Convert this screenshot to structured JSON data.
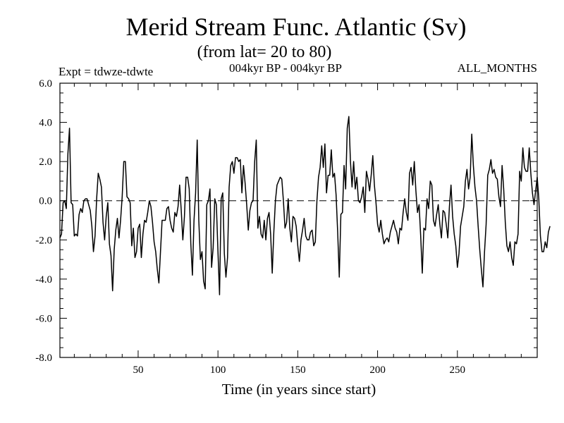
{
  "chart_data": {
    "type": "line",
    "title": "Merid Stream Func. Atlantic (Sv)",
    "subtitle": "(from lat= 20 to 80)",
    "experiment": "Expt = tdwze-tdwte",
    "period": "004kyr BP - 004kyr BP",
    "months": "ALL_MONTHS",
    "xlabel": "Time (in years since start)",
    "ylabel": "",
    "xlim": [
      1,
      300
    ],
    "ylim": [
      -8,
      6
    ],
    "xticks": [
      50,
      100,
      150,
      200,
      250
    ],
    "xtick_labels": [
      "50",
      "100",
      "150",
      "200",
      "250"
    ],
    "yticks": [
      -8,
      -6,
      -4,
      -2,
      0,
      2,
      4,
      6
    ],
    "ytick_labels": [
      "-8.0",
      "-6.0",
      "-4.0",
      "-2.0",
      "0.0",
      "2.0",
      "4.0",
      "6.0"
    ],
    "zero_line": "dashed",
    "series": [
      {
        "name": "tdwze-tdwte",
        "x_start": 1,
        "x_step": 1,
        "values": [
          -1.9,
          -1.7,
          -0.1,
          0.0,
          -0.4,
          2.4,
          3.7,
          -0.1,
          -0.2,
          -1.8,
          -1.7,
          -1.8,
          -0.7,
          -0.4,
          -0.6,
          0.0,
          0.1,
          0.1,
          -0.2,
          -0.5,
          -1.3,
          -2.6,
          -1.8,
          0.1,
          1.4,
          1.1,
          0.7,
          -1.1,
          -2.0,
          -0.8,
          -0.1,
          -2.2,
          -2.8,
          -4.6,
          -2.5,
          -1.5,
          -0.9,
          -1.9,
          -1.0,
          0.2,
          2.0,
          2.0,
          0.2,
          0.1,
          -0.1,
          -2.3,
          -1.4,
          -2.9,
          -2.6,
          -1.4,
          -1.2,
          -2.9,
          -1.7,
          -1.0,
          -1.1,
          -0.6,
          0.0,
          -0.3,
          -1.1,
          -2.1,
          -2.6,
          -3.5,
          -4.2,
          -2.6,
          -1.0,
          -1.0,
          -1.0,
          -0.4,
          -0.3,
          -1.0,
          -1.4,
          -1.6,
          -0.6,
          -0.8,
          -0.3,
          0.8,
          -0.5,
          -2.0,
          -0.8,
          1.2,
          1.2,
          0.6,
          -2.2,
          -3.8,
          -1.0,
          0.4,
          3.1,
          -1.0,
          -3.0,
          -2.6,
          -4.1,
          -4.5,
          -0.2,
          0.0,
          0.6,
          -3.4,
          -2.4,
          0.1,
          -0.2,
          -2.6,
          -4.8,
          0.1,
          0.4,
          -2.7,
          -3.9,
          -2.9,
          0.7,
          1.8,
          2.0,
          1.4,
          2.2,
          2.2,
          2.0,
          2.1,
          0.4,
          1.8,
          0.9,
          -0.2,
          -1.5,
          -0.5,
          -0.1,
          0.0,
          2.0,
          3.1,
          -1.4,
          -0.8,
          -1.7,
          -1.9,
          -1.0,
          -2.0,
          -0.9,
          -0.6,
          -1.7,
          -3.7,
          -1.6,
          0.0,
          0.8,
          1.0,
          1.2,
          1.1,
          0.0,
          -1.4,
          -1.1,
          0.1,
          -1.4,
          -2.1,
          -0.8,
          -0.9,
          -1.3,
          -2.3,
          -3.1,
          -2.0,
          -1.5,
          -0.9,
          -1.8,
          -2.0,
          -2.0,
          -1.6,
          -1.5,
          -2.3,
          -2.1,
          0.0,
          1.2,
          1.7,
          2.8,
          1.7,
          2.9,
          0.4,
          1.3,
          1.3,
          2.6,
          1.2,
          1.4,
          0.3,
          -1.6,
          -3.9,
          -0.7,
          -0.6,
          1.8,
          0.6,
          3.7,
          4.3,
          2.0,
          0.7,
          2.0,
          0.6,
          1.2,
          0.0,
          -0.1,
          0.2,
          0.7,
          -0.6,
          1.5,
          1.1,
          0.5,
          1.3,
          2.3,
          0.8,
          -0.1,
          -1.2,
          -1.6,
          -1.0,
          -1.7,
          -2.2,
          -2.0,
          -1.9,
          -2.1,
          -1.6,
          -1.3,
          -1.0,
          -1.4,
          -1.6,
          -2.2,
          -1.4,
          -1.5,
          -0.6,
          0.1,
          -0.6,
          -1.0,
          1.4,
          1.7,
          0.8,
          2.0,
          0.5,
          -0.6,
          -0.2,
          -1.8,
          -3.7,
          -1.4,
          -1.5,
          0.1,
          -0.4,
          1.0,
          0.8,
          -1.0,
          -1.3,
          -0.7,
          -0.2,
          -1.2,
          -1.9,
          -0.5,
          -0.6,
          -1.2,
          -1.9,
          -0.3,
          0.8,
          -0.8,
          -1.7,
          -2.3,
          -3.4,
          -2.7,
          -1.3,
          -0.8,
          -0.3,
          1.0,
          1.6,
          0.6,
          1.2,
          3.4,
          1.8,
          0.7,
          0.0,
          -1.3,
          -2.5,
          -3.5,
          -4.4,
          -2.6,
          -1.2,
          1.3,
          1.6,
          2.1,
          1.4,
          1.6,
          1.2,
          1.1,
          0.2,
          -0.3,
          1.8,
          0.6,
          -1.1,
          -2.3,
          -2.6,
          -2.1,
          -2.9,
          -3.3,
          -2.1,
          -2.2,
          -1.7,
          1.5,
          1.0,
          2.7,
          1.7,
          1.5,
          1.5,
          2.7,
          1.4,
          0.4,
          -0.2,
          0.5,
          1.2,
          0.1,
          -1.8,
          -2.6,
          -2.6,
          -2.1,
          -2.4,
          -1.6,
          -1.3
        ]
      }
    ]
  }
}
